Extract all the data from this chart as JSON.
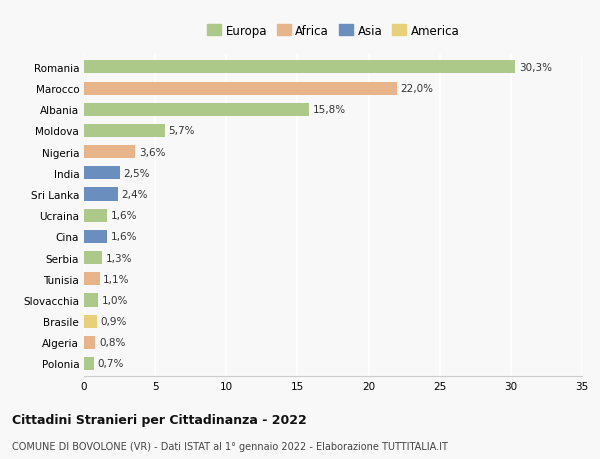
{
  "countries": [
    "Romania",
    "Marocco",
    "Albania",
    "Moldova",
    "Nigeria",
    "India",
    "Sri Lanka",
    "Ucraina",
    "Cina",
    "Serbia",
    "Tunisia",
    "Slovacchia",
    "Brasile",
    "Algeria",
    "Polonia"
  ],
  "values": [
    30.3,
    22.0,
    15.8,
    5.7,
    3.6,
    2.5,
    2.4,
    1.6,
    1.6,
    1.3,
    1.1,
    1.0,
    0.9,
    0.8,
    0.7
  ],
  "labels": [
    "30,3%",
    "22,0%",
    "15,8%",
    "5,7%",
    "3,6%",
    "2,5%",
    "2,4%",
    "1,6%",
    "1,6%",
    "1,3%",
    "1,1%",
    "1,0%",
    "0,9%",
    "0,8%",
    "0,7%"
  ],
  "continents": [
    "Europa",
    "Africa",
    "Europa",
    "Europa",
    "Africa",
    "Asia",
    "Asia",
    "Europa",
    "Asia",
    "Europa",
    "Africa",
    "Europa",
    "America",
    "Africa",
    "Europa"
  ],
  "colors": {
    "Europa": "#adc98a",
    "Africa": "#e8b48a",
    "Asia": "#6a8fbf",
    "America": "#e8cf7a"
  },
  "xlim": [
    0,
    35
  ],
  "xticks": [
    0,
    5,
    10,
    15,
    20,
    25,
    30,
    35
  ],
  "title": "Cittadini Stranieri per Cittadinanza - 2022",
  "subtitle": "COMUNE DI BOVOLONE (VR) - Dati ISTAT al 1° gennaio 2022 - Elaborazione TUTTITALIA.IT",
  "background_color": "#f8f8f8",
  "bar_height": 0.62,
  "label_fontsize": 7.5,
  "ytick_fontsize": 7.5,
  "xtick_fontsize": 7.5,
  "title_fontsize": 9,
  "subtitle_fontsize": 7,
  "legend_fontsize": 8.5
}
